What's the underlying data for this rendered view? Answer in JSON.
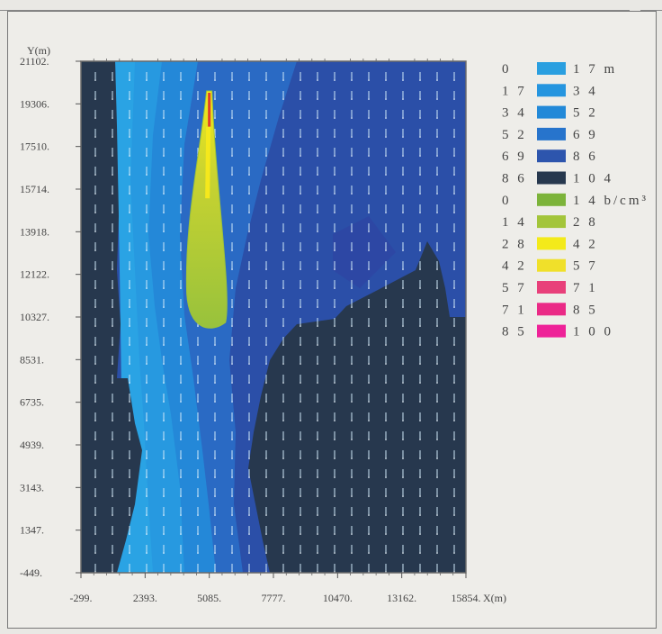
{
  "chart_data": {
    "type": "heatmap",
    "title": "",
    "xlabel": "X(m)",
    "ylabel": "Y(m)",
    "x_ticks": [
      "-299.",
      "2393.",
      "5085.",
      "7777.",
      "10470.",
      "13162.",
      "15854."
    ],
    "y_ticks": [
      "21102.",
      "19306.",
      "17510.",
      "15714.",
      "13918.",
      "12122.",
      "10327.",
      "8531.",
      "6735.",
      "4939.",
      "3143.",
      "1347.",
      "-449."
    ],
    "xlim": [
      -299,
      15854
    ],
    "ylim": [
      -449,
      21102
    ],
    "legend_position": "right",
    "legend": [
      {
        "low": "0",
        "high": "1 7 m",
        "color": "#2a9fe0"
      },
      {
        "low": "1 7",
        "high": "3 4",
        "color": "#2595df"
      },
      {
        "low": "3 4",
        "high": "5 2",
        "color": "#2289d8"
      },
      {
        "low": "5 2",
        "high": "6 9",
        "color": "#2774cc"
      },
      {
        "low": "6 9",
        "high": "8 6",
        "color": "#2d55ad"
      },
      {
        "low": "8 6",
        "high": "1 0 4",
        "color": "#27384e"
      },
      {
        "low": "0",
        "high": "1 4 b/cm³",
        "color": "#7cb33a"
      },
      {
        "low": "1 4",
        "high": "2 8",
        "color": "#a3c53a"
      },
      {
        "low": "2 8",
        "high": "4 2",
        "color": "#f3ea1a"
      },
      {
        "low": "4 2",
        "high": "5 7",
        "color": "#f0e02a"
      },
      {
        "low": "5 7",
        "high": "7 1",
        "color": "#e8407a"
      },
      {
        "low": "7 1",
        "high": "8 5",
        "color": "#ea2a86"
      },
      {
        "low": "8 5",
        "high": "1 0 0",
        "color": "#ee2298"
      }
    ],
    "plume": {
      "source": [
        5085,
        19850
      ],
      "tail": [
        5085,
        9800
      ],
      "max_half_width": 1050
    }
  }
}
